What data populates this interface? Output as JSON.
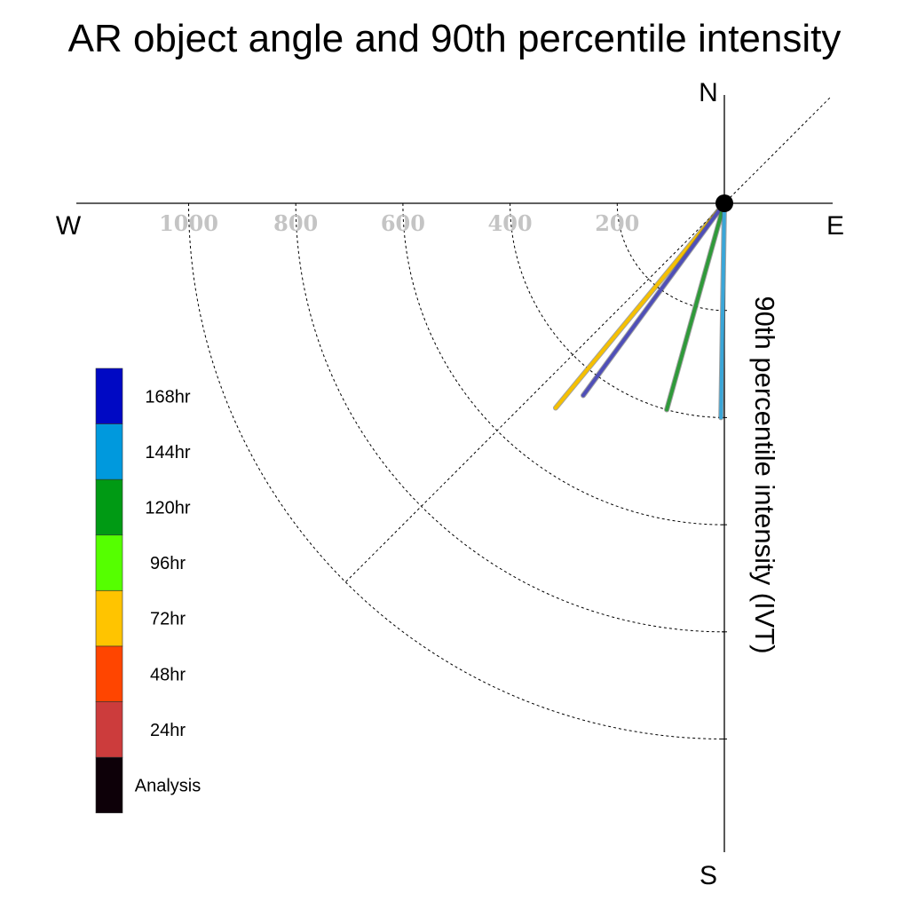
{
  "chart_data": {
    "type": "polar-quadrant",
    "title": "AR object angle and 90th percentile intensity",
    "ylabel": "90th percentile intensity (IVT)",
    "compass": {
      "north": "N",
      "south": "S",
      "east": "E",
      "west": "W"
    },
    "radial_ticks": [
      200,
      400,
      600,
      800,
      1000
    ],
    "radial_tick_labels": [
      "200",
      "400",
      "600",
      "800",
      "1000"
    ],
    "radial_range": [
      0,
      1000
    ],
    "grid": true,
    "legend_position": "left",
    "legend": [
      {
        "label": "168hr",
        "color": "#0009c4"
      },
      {
        "label": "144hr",
        "color": "#0099dd"
      },
      {
        "label": "120hr",
        "color": "#009a14"
      },
      {
        "label": "96hr",
        "color": "#55ff00"
      },
      {
        "label": "72hr",
        "color": "#ffc400"
      },
      {
        "label": "48hr",
        "color": "#ff4500"
      },
      {
        "label": "24hr",
        "color": "#cc3c3c"
      },
      {
        "label": "Analysis",
        "color": "#0d0008"
      }
    ],
    "series": [
      {
        "lead": "72hr",
        "color": "#f5c000",
        "intensity": 495,
        "direction_deg_from_south_toward_west": 39.5
      },
      {
        "lead": "168hr",
        "color": "#4f4fb8",
        "intensity": 445,
        "direction_deg_from_south_toward_west": 36.3
      },
      {
        "lead": "120hr",
        "color": "#2f9a3a",
        "intensity": 400,
        "direction_deg_from_south_toward_west": 15.6
      },
      {
        "lead": "144hr",
        "color": "#3aa6d8",
        "intensity": 400,
        "direction_deg_from_south_toward_west": 0.9
      }
    ]
  }
}
